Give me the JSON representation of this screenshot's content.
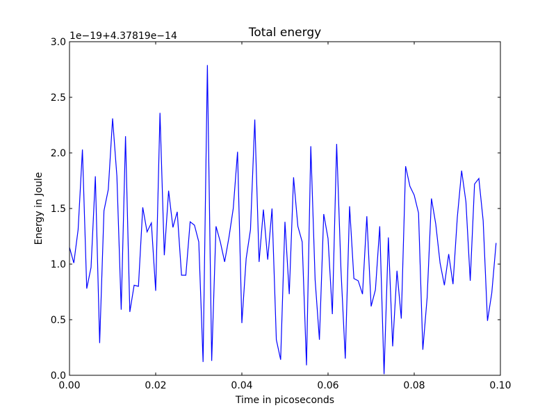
{
  "chart_data": {
    "type": "line",
    "title": "Total energy",
    "xlabel": "Time in picoseconds",
    "ylabel": "Energy in Joule",
    "offset_label": "1e−19+4.37819e−14",
    "xlim": [
      0.0,
      0.1
    ],
    "ylim": [
      0.0,
      3.0
    ],
    "x_ticks": [
      0.0,
      0.02,
      0.04,
      0.06,
      0.08,
      0.1
    ],
    "x_tick_labels": [
      "0.00",
      "0.02",
      "0.04",
      "0.06",
      "0.08",
      "0.10"
    ],
    "y_ticks": [
      0.0,
      0.5,
      1.0,
      1.5,
      2.0,
      2.5,
      3.0
    ],
    "y_tick_labels": [
      "0.0",
      "0.5",
      "1.0",
      "1.5",
      "2.0",
      "2.5",
      "3.0"
    ],
    "grid": false,
    "series": [
      {
        "color": "#0000ff",
        "x": [
          0.0,
          0.001,
          0.002,
          0.003,
          0.004,
          0.005,
          0.006,
          0.007,
          0.008,
          0.009,
          0.01,
          0.011,
          0.012,
          0.013,
          0.014,
          0.015,
          0.016,
          0.017,
          0.018,
          0.019,
          0.02,
          0.021,
          0.022,
          0.023,
          0.024,
          0.025,
          0.026,
          0.027,
          0.028,
          0.029,
          0.03,
          0.031,
          0.032,
          0.033,
          0.034,
          0.035,
          0.036,
          0.037,
          0.038,
          0.039,
          0.04,
          0.041,
          0.042,
          0.043,
          0.044,
          0.045,
          0.046,
          0.047,
          0.048,
          0.049,
          0.05,
          0.051,
          0.052,
          0.053,
          0.054,
          0.055,
          0.056,
          0.057,
          0.058,
          0.059,
          0.06,
          0.061,
          0.062,
          0.063,
          0.064,
          0.065,
          0.066,
          0.067,
          0.068,
          0.069,
          0.07,
          0.071,
          0.072,
          0.073,
          0.074,
          0.075,
          0.076,
          0.077,
          0.078,
          0.079,
          0.08,
          0.081,
          0.082,
          0.083,
          0.084,
          0.085,
          0.086,
          0.087,
          0.088,
          0.089,
          0.09,
          0.091,
          0.092,
          0.093,
          0.094,
          0.095,
          0.096,
          0.097,
          0.098,
          0.099
        ],
        "y": [
          1.15,
          1.01,
          1.31,
          2.03,
          0.78,
          0.97,
          1.79,
          0.29,
          1.48,
          1.67,
          2.31,
          1.79,
          0.59,
          2.15,
          0.57,
          0.81,
          0.8,
          1.51,
          1.29,
          1.37,
          0.76,
          2.36,
          1.08,
          1.66,
          1.33,
          1.47,
          0.9,
          0.9,
          1.38,
          1.35,
          1.2,
          0.12,
          2.79,
          0.13,
          1.34,
          1.2,
          1.02,
          1.24,
          1.5,
          2.01,
          0.47,
          1.05,
          1.31,
          2.3,
          1.02,
          1.49,
          1.04,
          1.5,
          0.32,
          0.14,
          1.38,
          0.73,
          1.78,
          1.34,
          1.2,
          0.09,
          2.06,
          0.86,
          0.32,
          1.45,
          1.23,
          0.55,
          2.08,
          0.95,
          0.15,
          1.52,
          0.87,
          0.85,
          0.73,
          1.43,
          0.62,
          0.77,
          1.34,
          0.01,
          1.24,
          0.26,
          0.94,
          0.51,
          1.88,
          1.7,
          1.62,
          1.46,
          0.23,
          0.7,
          1.59,
          1.36,
          1.01,
          0.81,
          1.09,
          0.82,
          1.42,
          1.84,
          1.56,
          0.85,
          1.72,
          1.77,
          1.39,
          0.49,
          0.74,
          1.19
        ]
      }
    ]
  }
}
